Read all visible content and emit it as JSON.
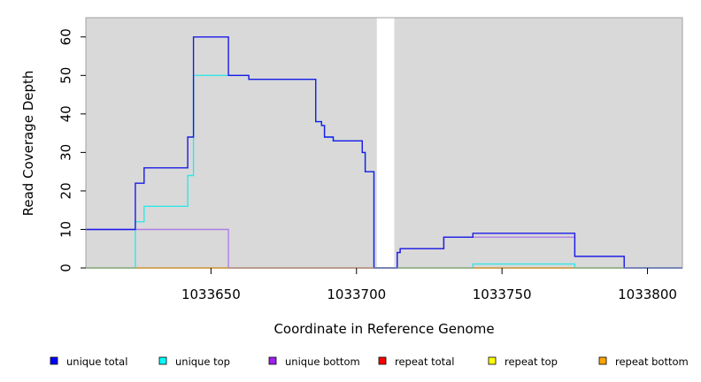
{
  "chart_data": {
    "type": "line",
    "title": "",
    "xlabel": "Coordinate in Reference Genome",
    "ylabel": "Read Coverage Depth",
    "xlim": [
      1033607,
      1033812
    ],
    "ylim": [
      0,
      65
    ],
    "x_ticks": [
      1033650,
      1033700,
      1033750,
      1033800
    ],
    "y_ticks": [
      0,
      10,
      20,
      30,
      40,
      50,
      60
    ],
    "x_tick_labels": [
      "1033650",
      "1033700",
      "1033750",
      "1033800"
    ],
    "y_tick_labels": [
      "0",
      "10",
      "20",
      "30",
      "40",
      "50",
      "60"
    ],
    "background": "#d9d9d9",
    "gap_region": [
      1033707,
      1033713
    ],
    "grid": false,
    "legend_position": "bottom",
    "series": [
      {
        "name": "repeat total",
        "color": "#ff0000",
        "steps": [
          [
            1033607,
            0
          ],
          [
            1033812,
            0
          ]
        ]
      },
      {
        "name": "repeat top",
        "color": "#ffff00",
        "steps": [
          [
            1033607,
            0
          ],
          [
            1033812,
            0
          ]
        ]
      },
      {
        "name": "repeat bottom",
        "color": "#ffa500",
        "steps": [
          [
            1033607,
            0
          ],
          [
            1033812,
            0
          ]
        ]
      },
      {
        "name": "unique bottom",
        "color": "#b07fe6",
        "steps": [
          [
            1033607,
            10
          ],
          [
            1033656,
            0
          ],
          [
            1033707,
            0
          ],
          [
            1033713,
            0
          ],
          [
            1033714,
            4
          ],
          [
            1033715,
            5
          ],
          [
            1033730,
            8
          ],
          [
            1033740,
            8
          ],
          [
            1033775,
            3
          ],
          [
            1033792,
            0
          ],
          [
            1033812,
            0
          ]
        ]
      },
      {
        "name": "unique top",
        "color": "#33e6e6",
        "steps": [
          [
            1033607,
            0
          ],
          [
            1033624,
            12
          ],
          [
            1033627,
            16
          ],
          [
            1033642,
            24
          ],
          [
            1033644,
            50
          ],
          [
            1033656,
            50
          ],
          [
            1033663,
            49
          ],
          [
            1033686,
            38
          ],
          [
            1033688,
            37
          ],
          [
            1033689,
            34
          ],
          [
            1033692,
            33
          ],
          [
            1033702,
            30
          ],
          [
            1033703,
            25
          ],
          [
            1033706,
            0
          ],
          [
            1033740,
            1
          ],
          [
            1033775,
            0
          ],
          [
            1033812,
            0
          ]
        ]
      },
      {
        "name": "unique total",
        "color": "#1a1ae6",
        "steps": [
          [
            1033607,
            10
          ],
          [
            1033624,
            22
          ],
          [
            1033627,
            26
          ],
          [
            1033642,
            34
          ],
          [
            1033644,
            60
          ],
          [
            1033656,
            50
          ],
          [
            1033663,
            49
          ],
          [
            1033686,
            38
          ],
          [
            1033688,
            37
          ],
          [
            1033689,
            34
          ],
          [
            1033692,
            33
          ],
          [
            1033702,
            30
          ],
          [
            1033703,
            25
          ],
          [
            1033706,
            0
          ],
          [
            1033713,
            0
          ],
          [
            1033714,
            4
          ],
          [
            1033715,
            5
          ],
          [
            1033730,
            8
          ],
          [
            1033740,
            9
          ],
          [
            1033775,
            3
          ],
          [
            1033792,
            0
          ],
          [
            1033812,
            0
          ]
        ]
      }
    ]
  },
  "legend": [
    {
      "label": "unique total",
      "color": "#0000ff"
    },
    {
      "label": "unique top",
      "color": "#00ffff"
    },
    {
      "label": "unique bottom",
      "color": "#a020f0"
    },
    {
      "label": "repeat total",
      "color": "#ff0000"
    },
    {
      "label": "repeat top",
      "color": "#ffff00"
    },
    {
      "label": "repeat bottom",
      "color": "#ffa500"
    }
  ]
}
